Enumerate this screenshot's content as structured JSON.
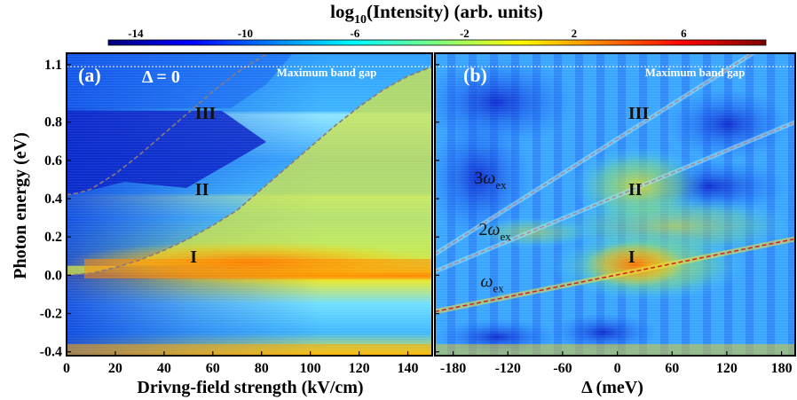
{
  "colorbar": {
    "title_main": "log",
    "title_sub": "10",
    "title_rest": "(Intensity) (arb. units)",
    "ticks": [
      -14,
      -10,
      -6,
      -2,
      2,
      6
    ],
    "tick_labels": [
      "-14",
      "-10",
      "-6",
      "-2",
      "2",
      "6"
    ],
    "range": [
      -15,
      9
    ],
    "colormap": [
      "#00007f",
      "#0000ff",
      "#007fff",
      "#00ffff",
      "#7fff7f",
      "#ffff00",
      "#ff7f00",
      "#ff0000",
      "#7f0000"
    ]
  },
  "chart_data": [
    {
      "type": "heatmap",
      "panel_label": "(a)",
      "condition": "Δ = 0",
      "annotation": "Maximum band gap",
      "max_band_gap_ev": 1.09,
      "xlabel": "Drivng-field strength (kV/cm)",
      "ylabel": "Photon energy (eV)",
      "xlim": [
        0,
        150
      ],
      "ylim": [
        -0.42,
        1.16
      ],
      "x_ticks": [
        0,
        20,
        40,
        60,
        80,
        100,
        120,
        140
      ],
      "x_tick_labels": [
        "0",
        "20",
        "40",
        "60",
        "80",
        "100",
        "120",
        "140"
      ],
      "y_ticks": [
        -0.4,
        -0.2,
        0.0,
        0.2,
        0.4,
        0.6,
        0.8,
        1.1
      ],
      "y_tick_labels": [
        "-0.4",
        "-0.2",
        "0.0",
        "0.2",
        "0.4",
        "0.6",
        "0.8",
        "1.1"
      ],
      "regions": [
        {
          "label": "I",
          "x": 58,
          "y": 0.1
        },
        {
          "label": "II",
          "x": 60,
          "y": 0.45
        },
        {
          "label": "III",
          "x": 60,
          "y": 0.85
        }
      ],
      "dashed_curves": [
        {
          "name": "lower boundary",
          "x": [
            0,
            10,
            20,
            30,
            40,
            50,
            60,
            70,
            80,
            90,
            100,
            110,
            120,
            130,
            140,
            150
          ],
          "y": [
            0.0,
            0.01,
            0.04,
            0.08,
            0.13,
            0.19,
            0.26,
            0.34,
            0.45,
            0.56,
            0.67,
            0.78,
            0.88,
            0.97,
            1.04,
            1.09
          ]
        },
        {
          "name": "upper boundary",
          "x": [
            0,
            5,
            10,
            20,
            30,
            40,
            50,
            60,
            70,
            80,
            90,
            100
          ],
          "y": [
            0.42,
            0.43,
            0.45,
            0.53,
            0.63,
            0.74,
            0.85,
            0.96,
            1.06,
            1.14,
            1.22,
            1.28
          ]
        }
      ]
    },
    {
      "type": "heatmap",
      "panel_label": "(b)",
      "annotation": "Maximum band gap",
      "max_band_gap_ev": 1.09,
      "xlabel": "Δ (meV)",
      "xlim": [
        -200,
        195
      ],
      "ylim": [
        -0.42,
        1.16
      ],
      "x_ticks": [
        -180,
        -120,
        -60,
        0,
        60,
        120,
        180
      ],
      "x_tick_labels": [
        "-180",
        "-120",
        "-60",
        "0",
        "60",
        "120",
        "180"
      ],
      "regions": [
        {
          "label": "I",
          "x": 12,
          "y": 0.1
        },
        {
          "label": "II",
          "x": 12,
          "y": 0.45
        },
        {
          "label": "III",
          "x": 12,
          "y": 0.85
        }
      ],
      "line_labels": [
        {
          "coef": "",
          "symbol": "ω",
          "sub": "ex",
          "x": -150,
          "y": -0.06
        },
        {
          "coef": "2",
          "symbol": "ω",
          "sub": "ex",
          "x": -152,
          "y": 0.21
        },
        {
          "coef": "3",
          "symbol": "ω",
          "sub": "ex",
          "x": -157,
          "y": 0.48
        }
      ],
      "harmonic_lines": [
        {
          "name": "ωex",
          "x": [
            -200,
            195
          ],
          "y": [
            -0.19,
            0.19
          ],
          "color": "#d02020"
        },
        {
          "name": "2ωex",
          "x": [
            -200,
            195
          ],
          "y": [
            0.02,
            0.8
          ],
          "color": "#b08a8a"
        },
        {
          "name": "3ωex",
          "x": [
            -200,
            195
          ],
          "y": [
            0.11,
            1.3
          ],
          "color": "#b08a8a"
        }
      ]
    }
  ]
}
